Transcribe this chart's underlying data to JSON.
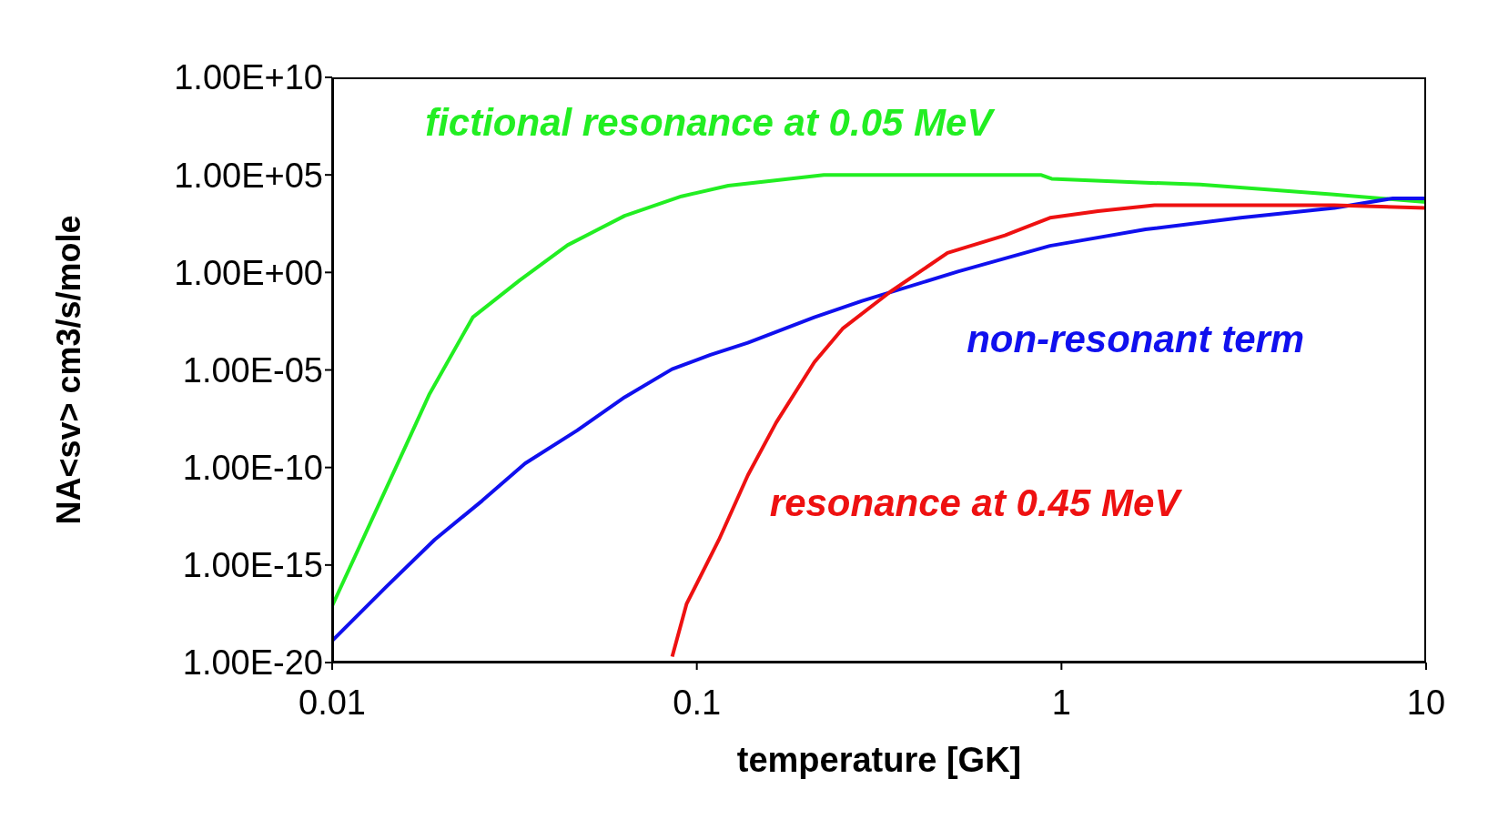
{
  "chart_data": {
    "type": "line",
    "xlabel": "temperature   [GK]",
    "ylabel": "NA<sv> cm3/s/mole",
    "log": "xy",
    "xlim": [
      0.01,
      10
    ],
    "xticks": [
      0.01,
      0.1,
      1,
      10
    ],
    "ylim": [
      1e-20,
      10000000000.0
    ],
    "yticks": [
      {
        "value": 1e-20,
        "label": "1.00E-20"
      },
      {
        "value": 1e-15,
        "label": "1.00E-15"
      },
      {
        "value": 1e-10,
        "label": "1.00E-10"
      },
      {
        "value": 1e-05,
        "label": "1.00E-05"
      },
      {
        "value": 1,
        "label": "1.00E+00"
      },
      {
        "value": 100000.0,
        "label": "1.00E+05"
      },
      {
        "value": 10000000000.0,
        "label": "1.00E+10"
      }
    ],
    "grid": false,
    "marker": "none",
    "line_style": "solid",
    "series": [
      {
        "name": "fictional resonance at 0.05 MeV",
        "color": "#22ee22",
        "x": [
          0.01,
          0.012,
          0.016,
          0.0185,
          0.0243,
          0.0327,
          0.0442,
          0.0634,
          0.0908,
          0.122,
          0.223,
          0.877,
          0.94,
          1.7,
          2.4,
          5.5,
          10
        ],
        "values": [
          8e-18,
          1.3e-14,
          1.6e-09,
          6e-07,
          0.005,
          0.4,
          25,
          800,
          8000,
          28000,
          100000.0,
          100000.0,
          63000,
          40000,
          32000,
          10000,
          4000
        ]
      },
      {
        "name": "non-resonant term",
        "color": "#1010ee",
        "x": [
          0.01,
          0.0141,
          0.0191,
          0.0258,
          0.0338,
          0.047,
          0.0634,
          0.0855,
          0.109,
          0.138,
          0.21,
          0.284,
          0.52,
          0.93,
          1.7,
          3.1,
          5.6,
          8.1,
          10
        ],
        "values": [
          1.3e-19,
          8e-17,
          2e-14,
          2e-12,
          1.6e-10,
          8e-09,
          4e-07,
          1.1e-05,
          6e-05,
          0.00025,
          0.005,
          0.035,
          1.1,
          23,
          160,
          630,
          2000,
          6300,
          6300
        ]
      },
      {
        "name": "resonance at 0.45 MeV",
        "color": "#ee1111",
        "x": [
          0.0856,
          0.0937,
          0.115,
          0.138,
          0.165,
          0.21,
          0.251,
          0.339,
          0.487,
          0.7,
          0.93,
          1.26,
          1.8,
          5.6,
          10
        ],
        "values": [
          2e-20,
          1e-17,
          2e-14,
          4e-11,
          2e-08,
          2.5e-05,
          0.0013,
          0.1,
          10,
          80,
          630,
          1400,
          2800,
          2800,
          2000
        ]
      }
    ]
  }
}
